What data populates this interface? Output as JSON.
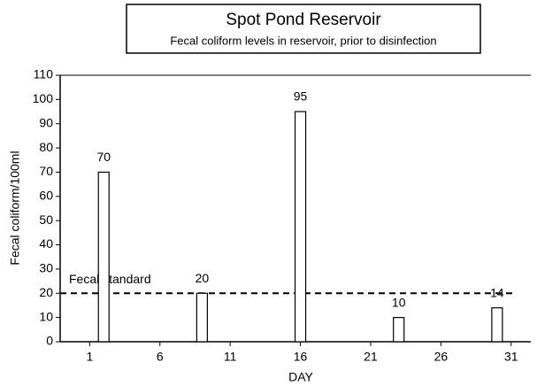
{
  "chart_data": {
    "type": "bar",
    "title": "Spot Pond Reservoir",
    "subtitle": "Fecal coliform levels in reservoir, prior to disinfection",
    "x_label": "DAY",
    "y_label": "Fecal coliform/100ml",
    "x": [
      2,
      9,
      16,
      23,
      30
    ],
    "values": [
      70,
      20,
      95,
      10,
      14
    ],
    "color": "#ffffff",
    "xlim": [
      -1.1,
      32.4
    ],
    "xticks": [
      1,
      6,
      11,
      16,
      21,
      26,
      31
    ],
    "ylim": [
      0,
      110
    ],
    "yticks": [
      0,
      10,
      20,
      30,
      40,
      50,
      60,
      70,
      80,
      90,
      100,
      110
    ],
    "reference_line": {
      "value": 20,
      "label": "Fecal standard"
    }
  }
}
